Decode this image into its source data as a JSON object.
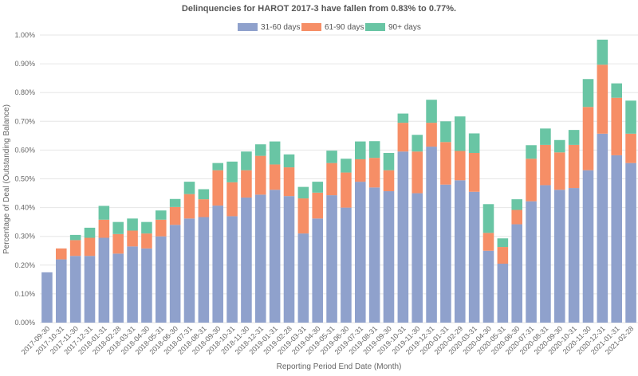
{
  "chart_data": {
    "type": "bar",
    "stacked": true,
    "title": "Delinquencies for HAROT 2017-3 have fallen from 0.83% to 0.77%.",
    "xlabel": "Reporting Period End Date (Month)",
    "ylabel": "Percentage of Deal (Outstanding Balance)",
    "ylim": [
      0,
      1.0
    ],
    "yticks": [
      "0.00%",
      "0.10%",
      "0.20%",
      "0.30%",
      "0.40%",
      "0.50%",
      "0.60%",
      "0.70%",
      "0.80%",
      "0.90%",
      "1.00%"
    ],
    "legend_position": "top-center",
    "categories": [
      "2017-09-30",
      "2017-10-31",
      "2017-11-30",
      "2017-12-31",
      "2018-01-31",
      "2018-02-28",
      "2018-03-31",
      "2018-04-30",
      "2018-05-31",
      "2018-06-30",
      "2018-07-31",
      "2018-08-31",
      "2018-09-30",
      "2018-10-31",
      "2018-11-30",
      "2018-12-31",
      "2019-01-31",
      "2019-02-28",
      "2019-03-31",
      "2019-04-30",
      "2019-05-31",
      "2019-06-30",
      "2019-07-31",
      "2019-08-31",
      "2019-09-30",
      "2019-10-31",
      "2019-11-30",
      "2019-12-31",
      "2020-01-31",
      "2020-02-29",
      "2020-03-31",
      "2020-04-30",
      "2020-05-31",
      "2020-06-30",
      "2020-07-31",
      "2020-08-31",
      "2020-09-30",
      "2020-10-31",
      "2020-11-30",
      "2020-12-31",
      "2021-01-31",
      "2021-02-28"
    ],
    "series": [
      {
        "name": "31-60 days",
        "color": "#8fa1cc",
        "values": [
          0.175,
          0.22,
          0.232,
          0.232,
          0.295,
          0.24,
          0.265,
          0.258,
          0.3,
          0.34,
          0.362,
          0.367,
          0.407,
          0.37,
          0.435,
          0.445,
          0.462,
          0.44,
          0.31,
          0.362,
          0.443,
          0.4,
          0.49,
          0.47,
          0.457,
          0.595,
          0.45,
          0.612,
          0.48,
          0.495,
          0.455,
          0.25,
          0.205,
          0.342,
          0.422,
          0.478,
          0.462,
          0.468,
          0.53,
          0.657,
          0.582,
          0.555
        ]
      },
      {
        "name": "61-90 days",
        "color": "#f68e66",
        "values": [
          0.0,
          0.038,
          0.055,
          0.063,
          0.063,
          0.068,
          0.055,
          0.052,
          0.058,
          0.062,
          0.085,
          0.062,
          0.123,
          0.118,
          0.095,
          0.135,
          0.088,
          0.1,
          0.122,
          0.09,
          0.112,
          0.122,
          0.078,
          0.103,
          0.073,
          0.1,
          0.145,
          0.083,
          0.148,
          0.102,
          0.135,
          0.062,
          0.058,
          0.05,
          0.148,
          0.14,
          0.13,
          0.15,
          0.22,
          0.24,
          0.2,
          0.102
        ]
      },
      {
        "name": "90+ days",
        "color": "#69c5a4",
        "values": [
          0.0,
          0.0,
          0.018,
          0.035,
          0.048,
          0.042,
          0.042,
          0.04,
          0.032,
          0.028,
          0.043,
          0.035,
          0.025,
          0.072,
          0.065,
          0.04,
          0.08,
          0.045,
          0.04,
          0.038,
          0.043,
          0.048,
          0.062,
          0.058,
          0.06,
          0.032,
          0.058,
          0.08,
          0.072,
          0.12,
          0.068,
          0.1,
          0.03,
          0.037,
          0.047,
          0.057,
          0.043,
          0.052,
          0.097,
          0.087,
          0.05,
          0.115
        ]
      }
    ]
  }
}
